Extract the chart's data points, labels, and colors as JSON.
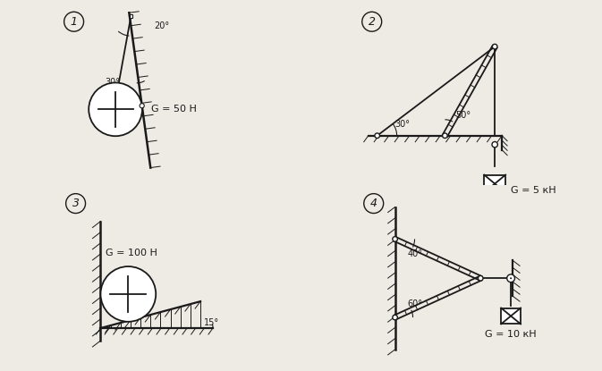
{
  "bg_color": "#eeebe4",
  "line_color": "#1a1a1a",
  "p1": {
    "G": "G = 50 H",
    "angle1_label": "20°",
    "angle2_label": "30°",
    "label": "1"
  },
  "p2": {
    "G": "G = 5 кН",
    "angle1_label": "30°",
    "angle2_label": "50°",
    "label": "2"
  },
  "p3": {
    "G": "G = 100 H",
    "angle_label": "15°",
    "label": "3"
  },
  "p4": {
    "G": "G = 10 кН",
    "angle1_label": "40°",
    "angle2_label": "60°",
    "label": "4"
  }
}
